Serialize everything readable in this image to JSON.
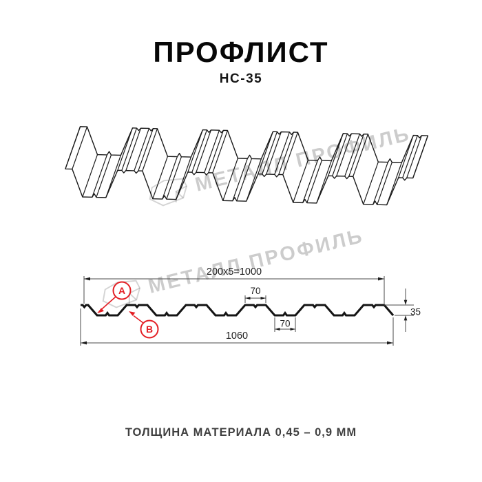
{
  "header": {
    "title": "ПРОФЛИСТ",
    "subtitle": "НС-35"
  },
  "watermark": {
    "text": "МЕТАЛЛ ПРОФИЛЬ",
    "logo_icon": "metall-profil-crystal-logo",
    "color": "#c6c6c6"
  },
  "section": {
    "dims": {
      "working_width": "200x5=1000",
      "rib_top_width": "70",
      "rib_bottom_width": "70",
      "profile_height": "35",
      "overall_width": "1060"
    },
    "labels": {
      "side_a": "А",
      "side_b": "В"
    },
    "annotation_color": "#e31e24",
    "line_color": "#141414"
  },
  "footer": {
    "text": "ТОЛЩИНА МАТЕРИАЛА 0,45 – 0,9 ММ"
  }
}
